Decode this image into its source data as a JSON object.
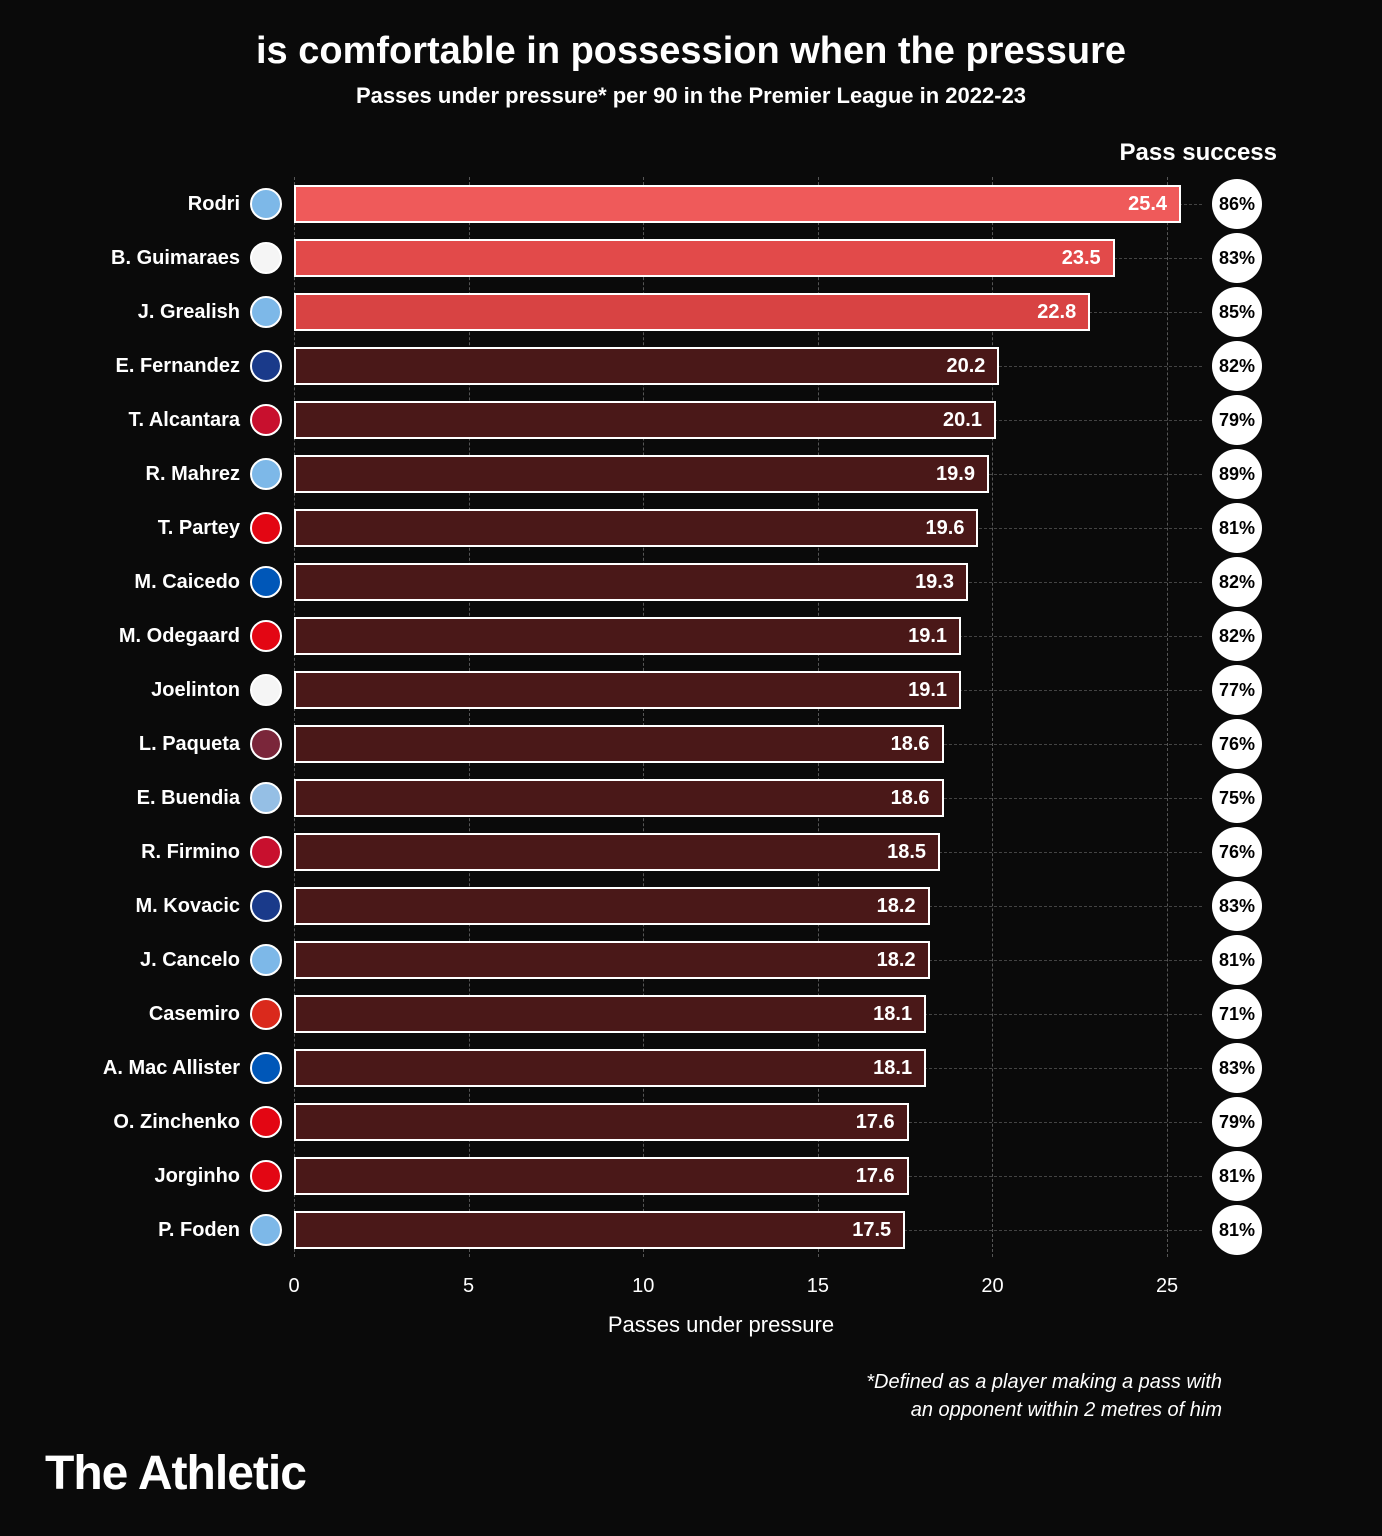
{
  "title": "is comfortable in possession when the pressure",
  "subtitle": "Passes under pressure* per 90 in the Premier League in 2022-23",
  "pass_success_header": "Pass success",
  "x_axis_title": "Passes under pressure",
  "footnote_line1": "*Defined as a player making a pass with",
  "footnote_line2": "an opponent within 2 metres of him",
  "brand": "The Athletic",
  "chart": {
    "type": "bar",
    "x_max": 26,
    "x_ticks": [
      0,
      5,
      10,
      15,
      20,
      25
    ],
    "bar_border_color": "#ffffff",
    "grid_color": "#555555",
    "background_color": "#0a0a0a",
    "highlight_colors": [
      "#ef5a5a",
      "#e24a4a",
      "#d84343"
    ],
    "default_bar_color": "#4a1818",
    "rows": [
      {
        "name": "Rodri",
        "value": 25.4,
        "success": "86%",
        "highlighted": true,
        "color": "#ef5a5a",
        "badge_bg": "#7db8e8"
      },
      {
        "name": "B. Guimaraes",
        "value": 23.5,
        "success": "83%",
        "highlighted": true,
        "color": "#e24a4a",
        "badge_bg": "#f5f5f5"
      },
      {
        "name": "J. Grealish",
        "value": 22.8,
        "success": "85%",
        "highlighted": true,
        "color": "#d84343",
        "badge_bg": "#7db8e8"
      },
      {
        "name": "E. Fernandez",
        "value": 20.2,
        "success": "82%",
        "highlighted": false,
        "color": "#4a1818",
        "badge_bg": "#1a3a8a"
      },
      {
        "name": "T. Alcantara",
        "value": 20.1,
        "success": "79%",
        "highlighted": false,
        "color": "#4a1818",
        "badge_bg": "#c8102e"
      },
      {
        "name": "R. Mahrez",
        "value": 19.9,
        "success": "89%",
        "highlighted": false,
        "color": "#4a1818",
        "badge_bg": "#7db8e8"
      },
      {
        "name": "T. Partey",
        "value": 19.6,
        "success": "81%",
        "highlighted": false,
        "color": "#4a1818",
        "badge_bg": "#e30613"
      },
      {
        "name": "M. Caicedo",
        "value": 19.3,
        "success": "82%",
        "highlighted": false,
        "color": "#4a1818",
        "badge_bg": "#0057b8"
      },
      {
        "name": "M. Odegaard",
        "value": 19.1,
        "success": "82%",
        "highlighted": false,
        "color": "#4a1818",
        "badge_bg": "#e30613"
      },
      {
        "name": "Joelinton",
        "value": 19.1,
        "success": "77%",
        "highlighted": false,
        "color": "#4a1818",
        "badge_bg": "#f5f5f5"
      },
      {
        "name": "L. Paqueta",
        "value": 18.6,
        "success": "76%",
        "highlighted": false,
        "color": "#4a1818",
        "badge_bg": "#7a263a"
      },
      {
        "name": "E. Buendia",
        "value": 18.6,
        "success": "75%",
        "highlighted": false,
        "color": "#4a1818",
        "badge_bg": "#95bfe5"
      },
      {
        "name": "R. Firmino",
        "value": 18.5,
        "success": "76%",
        "highlighted": false,
        "color": "#4a1818",
        "badge_bg": "#c8102e"
      },
      {
        "name": "M. Kovacic",
        "value": 18.2,
        "success": "83%",
        "highlighted": false,
        "color": "#4a1818",
        "badge_bg": "#1a3a8a"
      },
      {
        "name": "J. Cancelo",
        "value": 18.2,
        "success": "81%",
        "highlighted": false,
        "color": "#4a1818",
        "badge_bg": "#7db8e8"
      },
      {
        "name": "Casemiro",
        "value": 18.1,
        "success": "71%",
        "highlighted": false,
        "color": "#4a1818",
        "badge_bg": "#da291c"
      },
      {
        "name": "A. Mac Allister",
        "value": 18.1,
        "success": "83%",
        "highlighted": false,
        "color": "#4a1818",
        "badge_bg": "#0057b8"
      },
      {
        "name": "O. Zinchenko",
        "value": 17.6,
        "success": "79%",
        "highlighted": false,
        "color": "#4a1818",
        "badge_bg": "#e30613"
      },
      {
        "name": "Jorginho",
        "value": 17.6,
        "success": "81%",
        "highlighted": false,
        "color": "#4a1818",
        "badge_bg": "#e30613"
      },
      {
        "name": "P. Foden",
        "value": 17.5,
        "success": "81%",
        "highlighted": false,
        "color": "#4a1818",
        "badge_bg": "#7db8e8"
      }
    ]
  }
}
